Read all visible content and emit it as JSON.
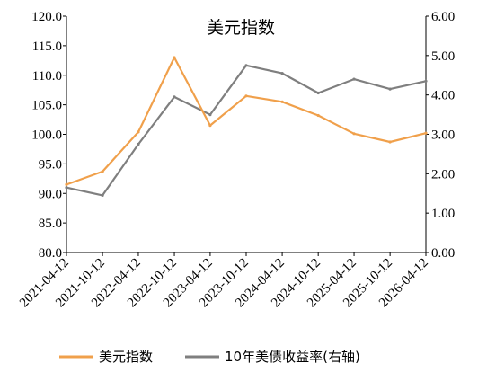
{
  "chart_data": {
    "type": "line",
    "title": "美元指数",
    "x_tick_labels": [
      "2021-04-12",
      "2021-10-12",
      "2022-04-12",
      "2022-10-12",
      "2023-04-12",
      "2023-10-12",
      "2024-04-12",
      "2024-10-12",
      "2025-04-12",
      "2025-10-12",
      "2026-04-12"
    ],
    "y_left": {
      "range": [
        80,
        120
      ],
      "tick_labels": [
        "80.0",
        "85.0",
        "90.0",
        "95.0",
        "100.0",
        "105.0",
        "110.0",
        "115.0",
        "120.0"
      ]
    },
    "y_right": {
      "range": [
        0,
        6
      ],
      "tick_labels": [
        "0.00",
        "1.00",
        "2.00",
        "3.00",
        "4.00",
        "5.00",
        "6.00"
      ]
    },
    "series": [
      {
        "name": "美元指数",
        "axis": "left",
        "color": "#f0a04b",
        "x": [
          "2021-04-12",
          "2021-10-12",
          "2022-04-12",
          "2022-10-12",
          "2023-04-12",
          "2023-10-12",
          "2024-04-12",
          "2024-10-12",
          "2025-04-12",
          "2025-10-12",
          "2026-04-12"
        ],
        "y": [
          91.5,
          93.7,
          100.4,
          113.0,
          101.5,
          106.5,
          105.5,
          103.2,
          100.1,
          98.7,
          100.2
        ]
      },
      {
        "name": "10年美债收益率(右轴)",
        "axis": "right",
        "color": "#7f7f7f",
        "x": [
          "2021-04-12",
          "2021-10-12",
          "2022-04-12",
          "2022-10-12",
          "2023-04-12",
          "2023-10-12",
          "2024-04-12",
          "2024-10-12",
          "2025-04-12",
          "2025-10-12",
          "2026-04-12"
        ],
        "y": [
          1.65,
          1.45,
          2.75,
          3.95,
          3.5,
          4.75,
          4.55,
          4.05,
          4.4,
          4.15,
          4.35
        ]
      }
    ],
    "legend": "bottom",
    "grid": false
  }
}
